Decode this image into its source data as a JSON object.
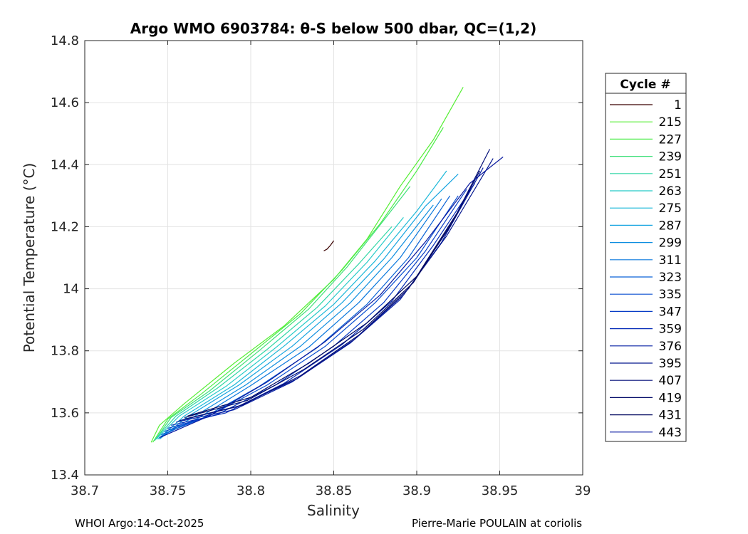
{
  "chart_data": {
    "type": "line",
    "title": "Argo WMO 6903784: θ-S below 500 dbar,  QC=(1,2)",
    "xlabel": "Salinity",
    "ylabel": "Potential Temperature (°C)",
    "xlim": [
      38.7,
      39.0
    ],
    "ylim": [
      13.4,
      14.8
    ],
    "xticks": [
      38.7,
      38.75,
      38.8,
      38.85,
      38.9,
      38.95,
      39.0
    ],
    "xtick_labels": [
      "38.7",
      "38.75",
      "38.8",
      "38.85",
      "38.9",
      "38.95",
      "39"
    ],
    "yticks": [
      13.4,
      13.6,
      13.8,
      14.0,
      14.2,
      14.4,
      14.6,
      14.8
    ],
    "ytick_labels": [
      "13.4",
      "13.6",
      "13.8",
      "14",
      "14.2",
      "14.4",
      "14.6",
      "14.8"
    ],
    "grid": true,
    "legend": {
      "title": "Cycle #",
      "position": "outside-right"
    },
    "series": [
      {
        "name": "1",
        "color": "#3a0000",
        "points": [
          [
            38.844,
            14.122
          ],
          [
            38.846,
            14.128
          ],
          [
            38.848,
            14.14
          ],
          [
            38.85,
            14.155
          ]
        ]
      },
      {
        "name": "215",
        "color": "#55ee33",
        "points": [
          [
            38.74,
            13.505
          ],
          [
            38.745,
            13.56
          ],
          [
            38.76,
            13.63
          ],
          [
            38.79,
            13.76
          ],
          [
            38.82,
            13.88
          ],
          [
            38.85,
            14.03
          ],
          [
            38.87,
            14.16
          ],
          [
            38.89,
            14.33
          ],
          [
            38.91,
            14.48
          ],
          [
            38.928,
            14.65
          ]
        ]
      },
      {
        "name": "227",
        "color": "#4ded4a",
        "points": [
          [
            38.741,
            13.505
          ],
          [
            38.75,
            13.58
          ],
          [
            38.77,
            13.66
          ],
          [
            38.8,
            13.79
          ],
          [
            38.83,
            13.92
          ],
          [
            38.855,
            14.06
          ],
          [
            38.878,
            14.21
          ],
          [
            38.9,
            14.38
          ],
          [
            38.916,
            14.52
          ]
        ]
      },
      {
        "name": "239",
        "color": "#3fe07a",
        "points": [
          [
            38.742,
            13.51
          ],
          [
            38.752,
            13.585
          ],
          [
            38.775,
            13.67
          ],
          [
            38.805,
            13.8
          ],
          [
            38.835,
            13.935
          ],
          [
            38.858,
            14.07
          ],
          [
            38.88,
            14.22
          ],
          [
            38.896,
            14.33
          ]
        ]
      },
      {
        "name": "251",
        "color": "#30d6a6",
        "points": [
          [
            38.742,
            13.512
          ],
          [
            38.755,
            13.59
          ],
          [
            38.78,
            13.68
          ],
          [
            38.81,
            13.805
          ],
          [
            38.84,
            13.94
          ],
          [
            38.865,
            14.08
          ],
          [
            38.885,
            14.2
          ]
        ]
      },
      {
        "name": "263",
        "color": "#26cbc8",
        "points": [
          [
            38.743,
            13.515
          ],
          [
            38.757,
            13.59
          ],
          [
            38.785,
            13.685
          ],
          [
            38.815,
            13.81
          ],
          [
            38.845,
            13.945
          ],
          [
            38.87,
            14.085
          ],
          [
            38.892,
            14.23
          ]
        ]
      },
      {
        "name": "275",
        "color": "#1cb8d8",
        "points": [
          [
            38.744,
            13.515
          ],
          [
            38.76,
            13.59
          ],
          [
            38.79,
            13.69
          ],
          [
            38.82,
            13.815
          ],
          [
            38.85,
            13.95
          ],
          [
            38.875,
            14.09
          ],
          [
            38.9,
            14.25
          ],
          [
            38.918,
            14.38
          ]
        ]
      },
      {
        "name": "287",
        "color": "#14a3e0",
        "points": [
          [
            38.745,
            13.515
          ],
          [
            38.762,
            13.588
          ],
          [
            38.793,
            13.69
          ],
          [
            38.825,
            13.815
          ],
          [
            38.855,
            13.955
          ],
          [
            38.88,
            14.095
          ],
          [
            38.905,
            14.265
          ],
          [
            38.925,
            14.37
          ]
        ]
      },
      {
        "name": "299",
        "color": "#0d8ee0",
        "points": [
          [
            38.745,
            13.52
          ],
          [
            38.765,
            13.585
          ],
          [
            38.797,
            13.69
          ],
          [
            38.83,
            13.815
          ],
          [
            38.86,
            13.955
          ],
          [
            38.885,
            14.1
          ],
          [
            38.91,
            14.27
          ]
        ]
      },
      {
        "name": "311",
        "color": "#0a78dd",
        "points": [
          [
            38.746,
            13.525
          ],
          [
            38.768,
            13.582
          ],
          [
            38.8,
            13.688
          ],
          [
            38.835,
            13.812
          ],
          [
            38.865,
            13.955
          ],
          [
            38.89,
            14.1
          ],
          [
            38.915,
            14.29
          ]
        ]
      },
      {
        "name": "323",
        "color": "#0962d6",
        "points": [
          [
            38.746,
            13.53
          ],
          [
            38.77,
            13.58
          ],
          [
            38.805,
            13.685
          ],
          [
            38.84,
            13.81
          ],
          [
            38.87,
            13.95
          ],
          [
            38.895,
            14.1
          ],
          [
            38.92,
            14.3
          ]
        ]
      },
      {
        "name": "335",
        "color": "#084ed0",
        "points": [
          [
            38.748,
            13.54
          ],
          [
            38.775,
            13.59
          ],
          [
            38.81,
            13.69
          ],
          [
            38.845,
            13.815
          ],
          [
            38.875,
            13.955
          ],
          [
            38.9,
            14.1
          ],
          [
            38.925,
            14.3
          ]
        ]
      },
      {
        "name": "347",
        "color": "#073cc6",
        "points": [
          [
            38.75,
            13.55
          ],
          [
            38.78,
            13.595
          ],
          [
            38.815,
            13.69
          ],
          [
            38.85,
            13.815
          ],
          [
            38.88,
            13.955
          ],
          [
            38.905,
            14.12
          ],
          [
            38.93,
            14.32
          ]
        ]
      },
      {
        "name": "359",
        "color": "#062cb8",
        "points": [
          [
            38.752,
            13.56
          ],
          [
            38.785,
            13.6
          ],
          [
            38.82,
            13.695
          ],
          [
            38.855,
            13.82
          ],
          [
            38.885,
            13.96
          ],
          [
            38.91,
            14.14
          ],
          [
            38.935,
            14.34
          ]
        ]
      },
      {
        "name": "376",
        "color": "#051fa4",
        "points": [
          [
            38.755,
            13.57
          ],
          [
            38.79,
            13.61
          ],
          [
            38.825,
            13.7
          ],
          [
            38.86,
            13.825
          ],
          [
            38.89,
            13.965
          ],
          [
            38.915,
            14.15
          ],
          [
            38.94,
            14.39
          ]
        ]
      },
      {
        "name": "395",
        "color": "#04168e",
        "points": [
          [
            38.757,
            13.575
          ],
          [
            38.792,
            13.62
          ],
          [
            38.828,
            13.71
          ],
          [
            38.862,
            13.835
          ],
          [
            38.892,
            13.98
          ],
          [
            38.918,
            14.17
          ],
          [
            38.946,
            14.42
          ]
        ]
      },
      {
        "name": "407",
        "color": "#030e78",
        "points": [
          [
            38.76,
            13.58
          ],
          [
            38.795,
            13.625
          ],
          [
            38.83,
            13.72
          ],
          [
            38.865,
            13.85
          ],
          [
            38.895,
            14.0
          ],
          [
            38.92,
            14.2
          ],
          [
            38.944,
            14.45
          ]
        ]
      },
      {
        "name": "419",
        "color": "#020a68",
        "points": [
          [
            38.76,
            13.585
          ],
          [
            38.798,
            13.64
          ],
          [
            38.832,
            13.74
          ],
          [
            38.868,
            13.87
          ],
          [
            38.898,
            14.02
          ],
          [
            38.922,
            14.22
          ],
          [
            38.938,
            14.38
          ]
        ]
      },
      {
        "name": "431",
        "color": "#01075e",
        "points": [
          [
            38.762,
            13.59
          ],
          [
            38.8,
            13.65
          ],
          [
            38.835,
            13.76
          ],
          [
            38.87,
            13.89
          ],
          [
            38.9,
            14.04
          ],
          [
            38.925,
            14.25
          ]
        ]
      },
      {
        "name": "443",
        "color": "#0a1aa0",
        "points": [
          [
            38.745,
            13.52
          ],
          [
            38.775,
            13.59
          ],
          [
            38.81,
            13.7
          ],
          [
            38.845,
            13.83
          ],
          [
            38.878,
            13.98
          ],
          [
            38.905,
            14.15
          ],
          [
            38.932,
            14.34
          ],
          [
            38.952,
            14.425
          ]
        ]
      }
    ]
  },
  "footer": {
    "left": "WHOI Argo:14-Oct-2025",
    "right": "Pierre-Marie POULAIN at coriolis"
  }
}
